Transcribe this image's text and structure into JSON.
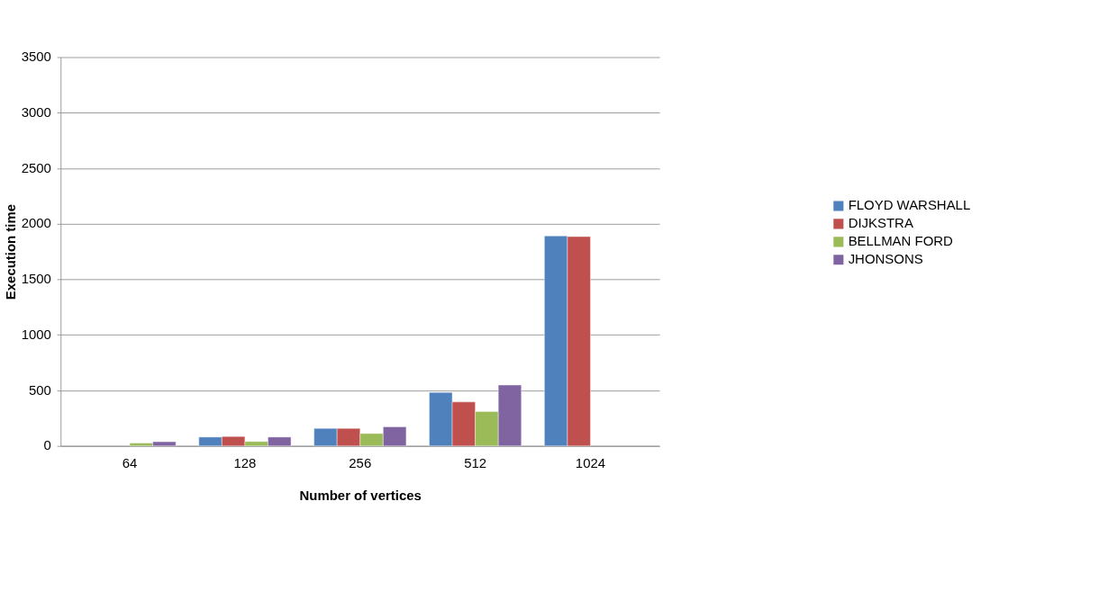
{
  "chart_data": {
    "type": "bar",
    "xlabel": "Number of vertices",
    "ylabel": "Execution time",
    "categories": [
      "64",
      "128",
      "256",
      "512",
      "1024"
    ],
    "series": [
      {
        "name": "FLOYD WARSHALL",
        "color": "#4f81bd",
        "values": [
          null,
          80,
          158,
          482,
          1890
        ]
      },
      {
        "name": "DIJKSTRA",
        "color": "#c0504d",
        "values": [
          null,
          85,
          158,
          396,
          1885
        ]
      },
      {
        "name": "BELLMAN FORD",
        "color": "#9bbb59",
        "values": [
          26,
          40,
          112,
          310,
          null
        ]
      },
      {
        "name": "JHONSONS",
        "color": "#8064a2",
        "values": [
          38,
          80,
          172,
          548,
          null
        ]
      }
    ],
    "ylim": [
      0,
      3500
    ],
    "yticks": [
      0,
      500,
      1000,
      1500,
      2000,
      2500,
      3000,
      3500
    ],
    "grid": "y",
    "legend": "right"
  }
}
